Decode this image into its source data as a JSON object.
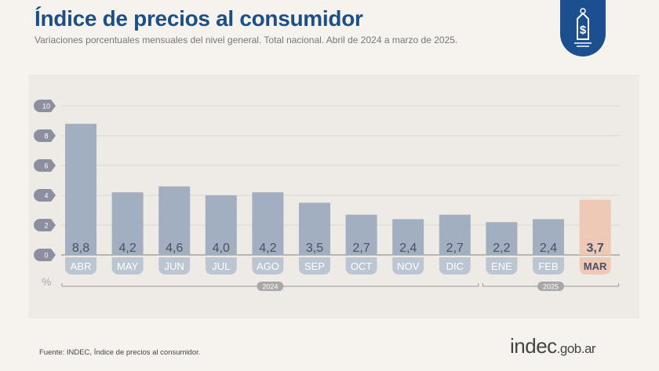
{
  "header": {
    "title": "Índice de precios al consumidor",
    "subtitle": "Variaciones porcentuales mensuales del nivel general. Total nacional. Abril de 2024 a marzo de 2025."
  },
  "logo": {
    "icon": "price-tag-dollar-icon",
    "color": "#1b4f8e"
  },
  "chart_data": {
    "type": "bar",
    "title": "Índice de precios al consumidor",
    "ylabel": "%",
    "ylim": [
      0,
      10
    ],
    "yticks": [
      0,
      2,
      4,
      6,
      8,
      10
    ],
    "grid": true,
    "categories": [
      "ABR",
      "MAY",
      "JUN",
      "JUL",
      "AGO",
      "SEP",
      "OCT",
      "NOV",
      "DIC",
      "ENE",
      "FEB",
      "MAR"
    ],
    "value_labels": [
      "8,8",
      "4,2",
      "4,6",
      "4,0",
      "4,2",
      "3,5",
      "2,7",
      "2,4",
      "2,7",
      "2,2",
      "2,4",
      "3,7"
    ],
    "values": [
      8.8,
      4.2,
      4.6,
      4.0,
      4.2,
      3.5,
      2.7,
      2.4,
      2.7,
      2.2,
      2.4,
      3.7
    ],
    "years": [
      {
        "label": "2024",
        "from": 0,
        "to": 8
      },
      {
        "label": "2025",
        "from": 9,
        "to": 11
      }
    ],
    "highlight_index": 11,
    "colors": {
      "bar": "#a1afc0",
      "highlight": "#edc9b6",
      "label_pill": "#bcc6d2",
      "grid": "#d9d5cf"
    }
  },
  "footer": {
    "source": "Fuente: INDEC, Índice de precios al consumidor.",
    "brand_main": "indec",
    "brand_domain": ".gob.ar"
  }
}
